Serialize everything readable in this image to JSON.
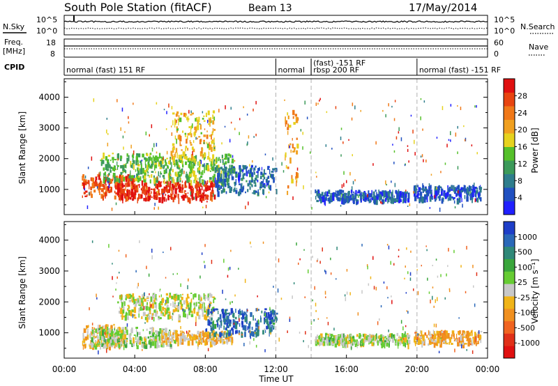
{
  "header": {
    "station": "South Pole Station (fitACF)",
    "beam": "Beam 13",
    "date": "17/May/2014"
  },
  "top_panels": {
    "nsky_label": "N.Sky",
    "nsearch_label": "N.Search",
    "freq_label_1": "Freq.",
    "freq_label_2": "[MHz]",
    "nave_label": "Nave",
    "cpid_label": "CPID",
    "noise_ticks_left": [
      "10^5",
      "10^0"
    ],
    "noise_ticks_right": [
      "10^5",
      "10^0"
    ],
    "freq_ticks_left": [
      "18",
      "8"
    ],
    "nave_ticks_right": [
      "60",
      "0"
    ]
  },
  "cpid_segments": [
    {
      "start_h": 0.0,
      "label": "normal (fast) 151 RF"
    },
    {
      "start_h": 12.0,
      "label": "normal"
    },
    {
      "start_h": 14.0,
      "label": "(fast) -151 RF"
    },
    {
      "start_h": 14.0,
      "label": "rbsp 200 RF"
    },
    {
      "start_h": 20.0,
      "label": "normal (fast) -151 RF"
    }
  ],
  "panels": {
    "power": {
      "ylabel": "Slant Range [km]",
      "colorbar_label": "Power [dB]",
      "colorbar_ticks": [
        "4",
        "8",
        "12",
        "16",
        "20",
        "24",
        "28"
      ],
      "colorbar_colors": [
        "#2020ff",
        "#2050c0",
        "#2e7d8c",
        "#3c9a5a",
        "#55c02a",
        "#e6d21e",
        "#f0a020",
        "#f07818",
        "#e84410",
        "#e01010"
      ]
    },
    "velocity": {
      "ylabel": "Slant Range [km]",
      "colorbar_label": "Velocity [m s⁻¹]",
      "colorbar_ticks": [
        "1000",
        "500",
        "100",
        "25",
        "-25",
        "-100",
        "-500",
        "-1000"
      ],
      "colorbar_colors": [
        "#1e3ec8",
        "#2a68b8",
        "#2f8878",
        "#3aa63c",
        "#66cc33",
        "#c8c8c8",
        "#f0b418",
        "#f09020",
        "#f06420",
        "#e03018",
        "#e01010"
      ]
    }
  },
  "xaxis": {
    "label": "Time UT",
    "tick_labels": [
      "00:00",
      "04:00",
      "08:00",
      "12:00",
      "16:00",
      "20:00",
      "00:00"
    ]
  },
  "chart_data": {
    "type": "heatmap",
    "title": "South Pole Station (fitACF)",
    "subtitle": "Beam 13 17/May/2014",
    "xlabel": "Time UT",
    "ylabel": "Slant Range [km]",
    "xlim_hours": [
      0,
      24
    ],
    "ylim_km": [
      180,
      4600
    ],
    "y_ticks": [
      1000,
      2000,
      3000,
      4000
    ],
    "x_ticks_hours": [
      0,
      4,
      8,
      12,
      16,
      20,
      24
    ],
    "series": [
      {
        "name": "Power [dB]",
        "clim": [
          0,
          30
        ],
        "regions": [
          {
            "t0": 1.0,
            "t1": 4.0,
            "r0": 800,
            "r1": 1500,
            "level": 25
          },
          {
            "t0": 3.0,
            "t1": 8.5,
            "r0": 700,
            "r1": 1300,
            "level": 27
          },
          {
            "t0": 2.0,
            "t1": 9.5,
            "r0": 1300,
            "r1": 2200,
            "level": 13
          },
          {
            "t0": 8.5,
            "t1": 12.0,
            "r0": 900,
            "r1": 1800,
            "level": 6
          },
          {
            "t0": 14.2,
            "t1": 19.5,
            "r0": 650,
            "r1": 1000,
            "level": 5
          },
          {
            "t0": 19.8,
            "t1": 23.6,
            "r0": 700,
            "r1": 1150,
            "level": 5
          },
          {
            "t0": 6.0,
            "t1": 8.5,
            "r0": 2000,
            "r1": 3600,
            "level": 18
          },
          {
            "t0": 12.5,
            "t1": 13.2,
            "r0": 800,
            "r1": 3600,
            "level": 20
          }
        ]
      },
      {
        "name": "Velocity [m s⁻¹]",
        "clim": [
          -1000,
          1000
        ],
        "regions": [
          {
            "t0": 1.0,
            "t1": 3.5,
            "r0": 600,
            "r1": 1300,
            "level": -200
          },
          {
            "t0": 1.5,
            "t1": 6.0,
            "r0": 600,
            "r1": 1200,
            "level": 100
          },
          {
            "t0": 5.5,
            "t1": 9.5,
            "r0": 700,
            "r1": 1100,
            "level": -150
          },
          {
            "t0": 3.0,
            "t1": 8.5,
            "r0": 1500,
            "r1": 2300,
            "level": 0
          },
          {
            "t0": 8.0,
            "t1": 12.0,
            "r0": 1000,
            "r1": 1800,
            "level": 700
          },
          {
            "t0": 14.2,
            "t1": 19.5,
            "r0": 650,
            "r1": 1000,
            "level": 80
          },
          {
            "t0": 19.8,
            "t1": 23.6,
            "r0": 650,
            "r1": 1100,
            "level": -250
          }
        ]
      }
    ],
    "grid": false,
    "legend": "colorbar right"
  }
}
